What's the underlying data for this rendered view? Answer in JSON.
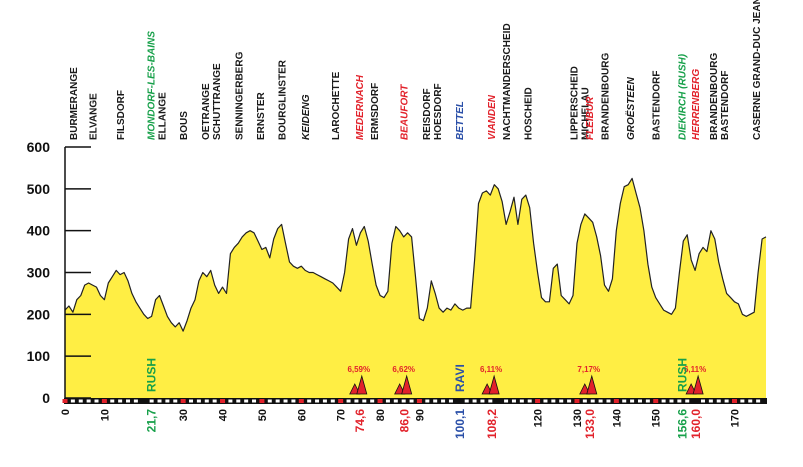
{
  "chart_data": {
    "type": "area",
    "title": "",
    "xlabel": "",
    "ylabel": "",
    "xlim": [
      0,
      178
    ],
    "ylim": [
      0,
      600
    ],
    "grid": false,
    "colors": {
      "fill": "#ffee44",
      "line": "#222222",
      "green": "#17a04a",
      "red": "#e2222b",
      "blue": "#2a4fa8",
      "black": "#1a1a1a",
      "tick_red": "#e2222b"
    },
    "y_ticks": [
      0,
      100,
      200,
      300,
      400,
      500,
      600
    ],
    "x_ticks": [
      {
        "v": 0,
        "label": "0"
      },
      {
        "v": 10,
        "label": "10"
      },
      {
        "v": 30,
        "label": "30"
      },
      {
        "v": 40,
        "label": "40"
      },
      {
        "v": 50,
        "label": "50"
      },
      {
        "v": 60,
        "label": "60"
      },
      {
        "v": 70,
        "label": "70"
      },
      {
        "v": 80,
        "label": "80"
      },
      {
        "v": 90,
        "label": "90"
      },
      {
        "v": 120,
        "label": "120"
      },
      {
        "v": 130,
        "label": "130"
      },
      {
        "v": 140,
        "label": "140"
      },
      {
        "v": 150,
        "label": "150"
      },
      {
        "v": 170,
        "label": "170"
      }
    ],
    "x_minor_ticks": [
      2,
      4,
      6,
      8,
      12,
      14,
      16,
      18,
      22,
      24,
      26,
      28,
      32,
      34,
      36,
      38,
      42,
      44,
      46,
      48,
      52,
      54,
      56,
      58,
      62,
      64,
      66,
      68,
      72,
      74,
      76,
      78,
      82,
      84,
      86,
      88,
      92,
      94,
      96,
      98,
      102,
      104,
      106,
      108,
      112,
      114,
      116,
      118,
      122,
      124,
      126,
      128,
      132,
      134,
      136,
      138,
      142,
      144,
      146,
      148,
      152,
      154,
      156,
      158,
      162,
      164,
      166,
      168,
      172,
      174,
      176
    ],
    "special_x": [
      {
        "v": 21.7,
        "label": "21,7",
        "color": "green"
      },
      {
        "v": 74.6,
        "label": "74,6",
        "color": "red"
      },
      {
        "v": 86.0,
        "label": "86,0",
        "color": "red"
      },
      {
        "v": 100.1,
        "label": "100,1",
        "color": "blue"
      },
      {
        "v": 108.2,
        "label": "108,2",
        "color": "red"
      },
      {
        "v": 133.0,
        "label": "133,0",
        "color": "red"
      },
      {
        "v": 156.6,
        "label": "156,6",
        "color": "green"
      },
      {
        "v": 160.0,
        "label": "160,0",
        "color": "red"
      }
    ],
    "places": [
      {
        "x": 2,
        "names": [
          "BURMERANGE"
        ],
        "color": "black",
        "italic": false
      },
      {
        "x": 7,
        "names": [
          "ELVANGE"
        ],
        "color": "black",
        "italic": false
      },
      {
        "x": 14,
        "names": [
          "FILSDORF"
        ],
        "color": "black",
        "italic": false
      },
      {
        "x": 21.7,
        "names": [
          "MONDORF-LES-BAINS"
        ],
        "color": "green",
        "italic": true
      },
      {
        "x": 24.5,
        "names": [
          "ELLANGE"
        ],
        "color": "black",
        "italic": false
      },
      {
        "x": 30,
        "names": [
          "BOUS"
        ],
        "color": "black",
        "italic": false
      },
      {
        "x": 37,
        "names": [
          "OETRANGE",
          "SCHUTTRANGE"
        ],
        "color": "black",
        "italic": false
      },
      {
        "x": 44,
        "names": [
          "SENNINGERBERG"
        ],
        "color": "black",
        "italic": false
      },
      {
        "x": 49.5,
        "names": [
          "ERNSTER"
        ],
        "color": "black",
        "italic": false
      },
      {
        "x": 55,
        "names": [
          "BOURGLINSTER"
        ],
        "color": "black",
        "italic": false
      },
      {
        "x": 61,
        "names": [
          "KEIDENG"
        ],
        "color": "black",
        "italic": true
      },
      {
        "x": 68.5,
        "names": [
          "LAROCHETTE"
        ],
        "color": "black",
        "italic": false
      },
      {
        "x": 74.6,
        "names": [
          "MEDERNACH"
        ],
        "color": "red",
        "italic": true
      },
      {
        "x": 78.5,
        "names": [
          "ERMSDORF"
        ],
        "color": "black",
        "italic": false
      },
      {
        "x": 86,
        "names": [
          "BEAUFORT"
        ],
        "color": "red",
        "italic": true
      },
      {
        "x": 93,
        "names": [
          "REISDORF",
          "HOESDORF"
        ],
        "color": "black",
        "italic": false
      },
      {
        "x": 100.1,
        "names": [
          "BETTEL"
        ],
        "color": "blue",
        "italic": true
      },
      {
        "x": 108.2,
        "names": [
          "VIANDEN"
        ],
        "color": "red",
        "italic": true
      },
      {
        "x": 112,
        "names": [
          "NACHTMANDERSCHEID"
        ],
        "color": "black",
        "italic": false
      },
      {
        "x": 117.5,
        "names": [
          "HOSCHEID"
        ],
        "color": "black",
        "italic": false
      },
      {
        "x": 130.5,
        "names": [
          "LIPPERSCHEID",
          "MICHELAU"
        ],
        "color": "black",
        "italic": false
      },
      {
        "x": 133,
        "names": [
          "FLEIBUR"
        ],
        "color": "red",
        "italic": true
      },
      {
        "x": 137,
        "names": [
          "BRANDENBOURG"
        ],
        "color": "black",
        "italic": false
      },
      {
        "x": 143.5,
        "names": [
          "GROËSTEEN"
        ],
        "color": "black",
        "italic": true
      },
      {
        "x": 150,
        "names": [
          "BASTENDORF"
        ],
        "color": "black",
        "italic": false
      },
      {
        "x": 156.6,
        "names": [
          "DIEKIRCH (RUSH)"
        ],
        "color": "green",
        "italic": true
      },
      {
        "x": 160,
        "names": [
          "HERRENBERG"
        ],
        "color": "red",
        "italic": true
      },
      {
        "x": 166,
        "names": [
          "BRANDENBOURG",
          "BASTENDORF"
        ],
        "color": "black",
        "italic": false
      },
      {
        "x": 175.5,
        "names": [
          "CASERNE GRAND-DUC JEAN"
        ],
        "color": "black",
        "italic": false
      }
    ],
    "markers": [
      {
        "x": 21.7,
        "label": "RUSH",
        "color": "green"
      },
      {
        "x": 100.1,
        "label": "RAVI",
        "color": "blue"
      },
      {
        "x": 156.6,
        "label": "RUSH",
        "color": "green"
      }
    ],
    "climbs": [
      {
        "x": 74.6,
        "label": "6,59%"
      },
      {
        "x": 86.0,
        "label": "6,62%"
      },
      {
        "x": 108.2,
        "label": "6,11%"
      },
      {
        "x": 133.0,
        "label": "7,17%"
      },
      {
        "x": 160.0,
        "label": "6,11%"
      }
    ],
    "elevation": [
      [
        0,
        210
      ],
      [
        1,
        220
      ],
      [
        2,
        205
      ],
      [
        3,
        235
      ],
      [
        4,
        245
      ],
      [
        5,
        270
      ],
      [
        6,
        275
      ],
      [
        7,
        270
      ],
      [
        8,
        265
      ],
      [
        9,
        245
      ],
      [
        10,
        235
      ],
      [
        11,
        275
      ],
      [
        12,
        290
      ],
      [
        13,
        305
      ],
      [
        14,
        295
      ],
      [
        15,
        300
      ],
      [
        16,
        280
      ],
      [
        17,
        250
      ],
      [
        18,
        230
      ],
      [
        19,
        215
      ],
      [
        20,
        200
      ],
      [
        21,
        190
      ],
      [
        22,
        195
      ],
      [
        23,
        235
      ],
      [
        24,
        245
      ],
      [
        25,
        220
      ],
      [
        26,
        195
      ],
      [
        27,
        180
      ],
      [
        28,
        170
      ],
      [
        29,
        180
      ],
      [
        30,
        160
      ],
      [
        31,
        185
      ],
      [
        32,
        215
      ],
      [
        33,
        235
      ],
      [
        34,
        280
      ],
      [
        35,
        300
      ],
      [
        36,
        290
      ],
      [
        37,
        305
      ],
      [
        38,
        270
      ],
      [
        39,
        250
      ],
      [
        40,
        265
      ],
      [
        41,
        250
      ],
      [
        42,
        345
      ],
      [
        43,
        360
      ],
      [
        44,
        370
      ],
      [
        45,
        385
      ],
      [
        46,
        395
      ],
      [
        47,
        400
      ],
      [
        48,
        395
      ],
      [
        49,
        375
      ],
      [
        50,
        355
      ],
      [
        51,
        360
      ],
      [
        52,
        335
      ],
      [
        53,
        380
      ],
      [
        54,
        405
      ],
      [
        55,
        415
      ],
      [
        56,
        370
      ],
      [
        57,
        325
      ],
      [
        58,
        315
      ],
      [
        59,
        310
      ],
      [
        60,
        315
      ],
      [
        61,
        305
      ],
      [
        62,
        300
      ],
      [
        63,
        300
      ],
      [
        64,
        295
      ],
      [
        65,
        290
      ],
      [
        66,
        285
      ],
      [
        67,
        280
      ],
      [
        68,
        275
      ],
      [
        69,
        265
      ],
      [
        70,
        255
      ],
      [
        71,
        300
      ],
      [
        72,
        380
      ],
      [
        73,
        405
      ],
      [
        74,
        365
      ],
      [
        75,
        395
      ],
      [
        76,
        410
      ],
      [
        77,
        375
      ],
      [
        78,
        320
      ],
      [
        79,
        270
      ],
      [
        80,
        245
      ],
      [
        81,
        240
      ],
      [
        82,
        255
      ],
      [
        83,
        370
      ],
      [
        84,
        410
      ],
      [
        85,
        400
      ],
      [
        86,
        385
      ],
      [
        87,
        395
      ],
      [
        88,
        385
      ],
      [
        89,
        290
      ],
      [
        90,
        190
      ],
      [
        91,
        185
      ],
      [
        92,
        215
      ],
      [
        93,
        280
      ],
      [
        94,
        250
      ],
      [
        95,
        215
      ],
      [
        96,
        205
      ],
      [
        97,
        215
      ],
      [
        98,
        210
      ],
      [
        99,
        225
      ],
      [
        100,
        215
      ],
      [
        101,
        210
      ],
      [
        102,
        215
      ],
      [
        103,
        215
      ],
      [
        104,
        330
      ],
      [
        105,
        465
      ],
      [
        106,
        490
      ],
      [
        107,
        495
      ],
      [
        108,
        485
      ],
      [
        109,
        510
      ],
      [
        110,
        500
      ],
      [
        111,
        470
      ],
      [
        112,
        415
      ],
      [
        113,
        445
      ],
      [
        114,
        480
      ],
      [
        115,
        415
      ],
      [
        116,
        475
      ],
      [
        117,
        485
      ],
      [
        118,
        455
      ],
      [
        119,
        370
      ],
      [
        120,
        300
      ],
      [
        121,
        240
      ],
      [
        122,
        230
      ],
      [
        123,
        230
      ],
      [
        124,
        310
      ],
      [
        125,
        320
      ],
      [
        126,
        245
      ],
      [
        127,
        235
      ],
      [
        128,
        225
      ],
      [
        129,
        245
      ],
      [
        130,
        370
      ],
      [
        131,
        415
      ],
      [
        132,
        440
      ],
      [
        133,
        430
      ],
      [
        134,
        420
      ],
      [
        135,
        385
      ],
      [
        136,
        340
      ],
      [
        137,
        270
      ],
      [
        138,
        255
      ],
      [
        139,
        285
      ],
      [
        140,
        400
      ],
      [
        141,
        465
      ],
      [
        142,
        505
      ],
      [
        143,
        510
      ],
      [
        144,
        525
      ],
      [
        145,
        490
      ],
      [
        146,
        455
      ],
      [
        147,
        400
      ],
      [
        148,
        320
      ],
      [
        149,
        265
      ],
      [
        150,
        240
      ],
      [
        151,
        225
      ],
      [
        152,
        210
      ],
      [
        153,
        205
      ],
      [
        154,
        200
      ],
      [
        155,
        215
      ],
      [
        156,
        300
      ],
      [
        157,
        375
      ],
      [
        158,
        390
      ],
      [
        159,
        330
      ],
      [
        160,
        305
      ],
      [
        161,
        345
      ],
      [
        162,
        360
      ],
      [
        163,
        350
      ],
      [
        164,
        400
      ],
      [
        165,
        380
      ],
      [
        166,
        325
      ],
      [
        167,
        285
      ],
      [
        168,
        250
      ],
      [
        169,
        240
      ],
      [
        170,
        230
      ],
      [
        171,
        225
      ],
      [
        172,
        200
      ],
      [
        173,
        195
      ],
      [
        174,
        200
      ],
      [
        175,
        205
      ],
      [
        176,
        300
      ],
      [
        177,
        380
      ],
      [
        178,
        385
      ]
    ]
  }
}
